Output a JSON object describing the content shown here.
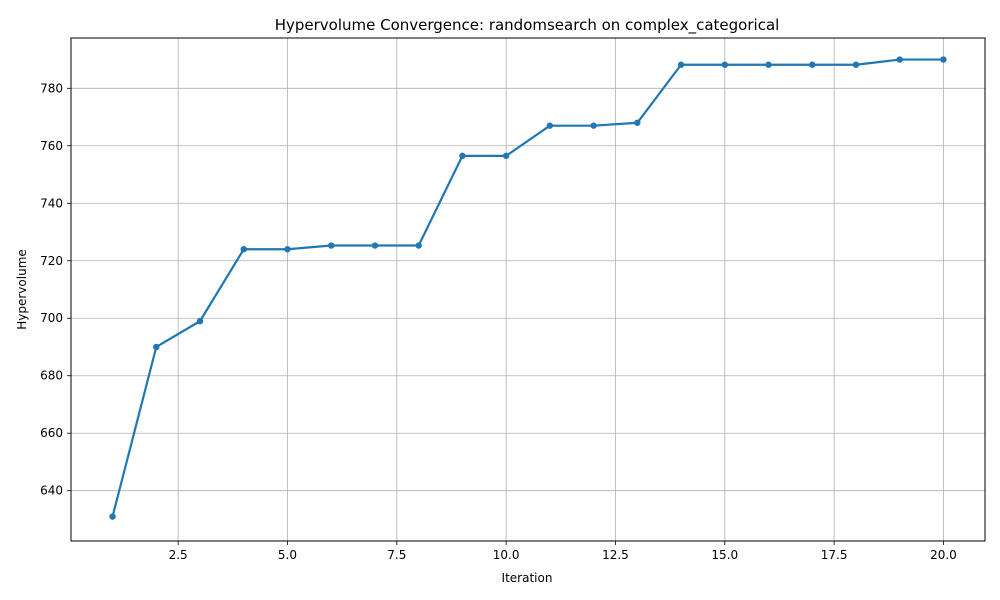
{
  "chart_data": {
    "type": "line",
    "title": "Hypervolume Convergence: randomsearch on complex_categorical",
    "xlabel": "Iteration",
    "ylabel": "Hypervolume",
    "xlim": [
      0.05,
      20.95
    ],
    "ylim": [
      622.5,
      797.5
    ],
    "xticks": [
      2.5,
      5.0,
      7.5,
      10.0,
      12.5,
      15.0,
      17.5,
      20.0
    ],
    "xtick_labels": [
      "2.5",
      "5.0",
      "7.5",
      "10.0",
      "12.5",
      "15.0",
      "17.5",
      "20.0"
    ],
    "yticks": [
      640,
      660,
      680,
      700,
      720,
      740,
      760,
      780
    ],
    "ytick_labels": [
      "640",
      "660",
      "680",
      "700",
      "720",
      "740",
      "760",
      "780"
    ],
    "grid": true,
    "series": [
      {
        "color": "#1f77b4",
        "x": [
          1,
          2,
          3,
          4,
          5,
          6,
          7,
          8,
          9,
          10,
          11,
          12,
          13,
          14,
          15,
          16,
          17,
          18,
          19,
          20
        ],
        "y": [
          631,
          690,
          699,
          724,
          724,
          725.3,
          725.3,
          725.3,
          756.5,
          756.5,
          767,
          767,
          768,
          788.2,
          788.2,
          788.2,
          788.2,
          788.2,
          790,
          790
        ]
      }
    ]
  }
}
